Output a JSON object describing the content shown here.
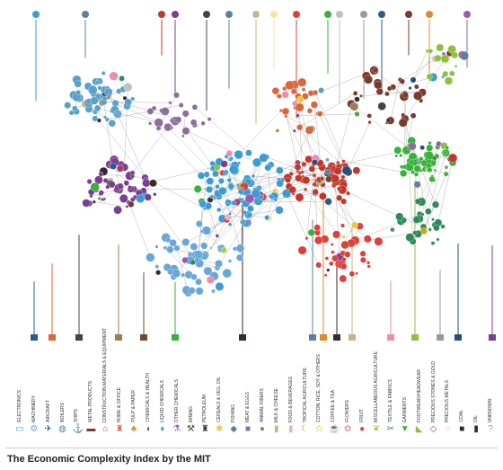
{
  "caption": "The Economic Complexity Index by the MIT",
  "categories": [
    {
      "label": "ELECTRONICS",
      "color": "#3b9bd6",
      "icon": "monitor-icon"
    },
    {
      "label": "MACHINERY",
      "color": "#6aa6d8",
      "icon": "gears-icon"
    },
    {
      "label": "AIRCRAFT",
      "color": "#2a5d8f",
      "icon": "airplane-icon"
    },
    {
      "label": "BOILERS",
      "color": "#5d7fa3",
      "icon": "boiler-icon"
    },
    {
      "label": "SHIPS",
      "color": "#234f7a",
      "icon": "anchor-icon"
    },
    {
      "label": "METAL PRODUCTS",
      "color": "#7a3a2c",
      "icon": "metal-icon"
    },
    {
      "label": "CONSTRUCTION MATERIALS & EQUIPMENT",
      "color": "#c4352b",
      "icon": "house-icon"
    },
    {
      "label": "HOME & OFFICE",
      "color": "#d9663c",
      "icon": "chair-icon"
    },
    {
      "label": "PULP & PAPER",
      "color": "#e08a2e",
      "icon": "tree-icon"
    },
    {
      "label": "CHEMICALS & HEALTH",
      "color": "#7a3f8f",
      "icon": "pill-icon"
    },
    {
      "label": "LIQUID CHEMICALS",
      "color": "#5aa0c8",
      "icon": "drop-icon"
    },
    {
      "label": "OTHER CHEMICALS",
      "color": "#9b59b6",
      "icon": "flask-icon"
    },
    {
      "label": "MINING",
      "color": "#444444",
      "icon": "mining-icon"
    },
    {
      "label": "PETROLEUM",
      "color": "#3a2a2a",
      "icon": "oil-derrick-icon"
    },
    {
      "label": "CEREALS & VEG. OIL",
      "color": "#f0c43a",
      "icon": "grain-icon"
    },
    {
      "label": "FISHING",
      "color": "#5f7fa0",
      "icon": "fish-icon"
    },
    {
      "label": "MEAT & EGGS",
      "color": "#8a6f9e",
      "icon": "cow-icon"
    },
    {
      "label": "ANIMAL FIBERS",
      "color": "#a07b5a",
      "icon": "sheep-icon"
    },
    {
      "label": "MILK & CHEESE",
      "color": "#c9b58a",
      "icon": "milk-icon"
    },
    {
      "label": "FOOD & BEVERAGES",
      "color": "#e6b3c0",
      "icon": "bottle-icon"
    },
    {
      "label": "TROPICAL AGRICULTURE",
      "color": "#d4a017",
      "icon": "banana-icon"
    },
    {
      "label": "COTTON, RICE, SOY & OTHERS",
      "color": "#f3e6a0",
      "icon": "cotton-icon"
    },
    {
      "label": "COFFEE & TEA",
      "color": "#6b4a2f",
      "icon": "coffee-icon"
    },
    {
      "label": "FLOWERS",
      "color": "#e88fb0",
      "icon": "flower-icon"
    },
    {
      "label": "FRUIT",
      "color": "#e0403a",
      "icon": "fruit-icon"
    },
    {
      "label": "MISCELLANEOUS AGRICULTURE",
      "color": "#b2c94a",
      "icon": "leaf-icon"
    },
    {
      "label": "TEXTILE & FABRICS",
      "color": "#2e8b57",
      "icon": "sewing-icon"
    },
    {
      "label": "GARMENTS",
      "color": "#38b23a",
      "icon": "shirt-icon"
    },
    {
      "label": "FOOTWEAR/HEADWEAR",
      "color": "#8fbf3f",
      "icon": "shoe-icon"
    },
    {
      "label": "PRECIOUS STONES & GOLD",
      "color": "#b03a6a",
      "icon": "gem-icon"
    },
    {
      "label": "PRECIOUS METALS",
      "color": "#c0c0c0",
      "icon": "ring-icon"
    },
    {
      "label": "COAL",
      "color": "#2b2b2b",
      "icon": "coal-icon"
    },
    {
      "label": "OIL",
      "color": "#3a2a2a",
      "icon": "oil-icon"
    },
    {
      "label": "UNKNOWN",
      "color": "#999999",
      "icon": "question-icon"
    }
  ]
}
